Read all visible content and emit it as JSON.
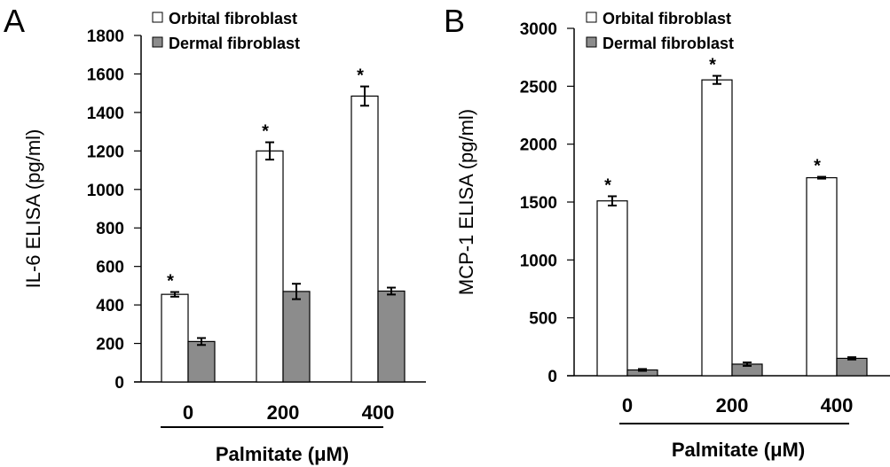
{
  "chart_data": [
    {
      "type": "bar",
      "panel_label": "A",
      "title": "",
      "xlabel": "Palmitate (μM)",
      "ylabel": "IL-6 ELISA (pg/ml)",
      "categories": [
        "0",
        "200",
        "400"
      ],
      "ylim": [
        0,
        1800
      ],
      "yticks": [
        0,
        200,
        400,
        600,
        800,
        1000,
        1200,
        1400,
        1600,
        1800
      ],
      "grid": false,
      "legend_position": "top-left",
      "series": [
        {
          "name": "Orbital fibroblast",
          "color": "#ffffff",
          "values": [
            455,
            1200,
            1485
          ],
          "errors": [
            12,
            45,
            50
          ],
          "significance": [
            "*",
            "*",
            "*"
          ]
        },
        {
          "name": "Dermal fibroblast",
          "color": "#8c8c8c",
          "values": [
            210,
            470,
            472
          ],
          "errors": [
            18,
            40,
            18
          ],
          "significance": [
            "",
            "",
            ""
          ]
        }
      ]
    },
    {
      "type": "bar",
      "panel_label": "B",
      "title": "",
      "xlabel": "Palmitate (μM)",
      "ylabel": "MCP-1 ELISA (pg/ml)",
      "categories": [
        "0",
        "200",
        "400"
      ],
      "ylim": [
        0,
        3000
      ],
      "yticks": [
        0,
        500,
        1000,
        1500,
        2000,
        2500,
        3000
      ],
      "grid": false,
      "legend_position": "top-left",
      "series": [
        {
          "name": "Orbital fibroblast",
          "color": "#ffffff",
          "values": [
            1510,
            2555,
            1710
          ],
          "errors": [
            40,
            35,
            8
          ],
          "significance": [
            "*",
            "*",
            "*"
          ]
        },
        {
          "name": "Dermal fibroblast",
          "color": "#8c8c8c",
          "values": [
            50,
            100,
            150
          ],
          "errors": [
            8,
            15,
            10
          ],
          "significance": [
            "",
            "",
            ""
          ]
        }
      ]
    }
  ]
}
